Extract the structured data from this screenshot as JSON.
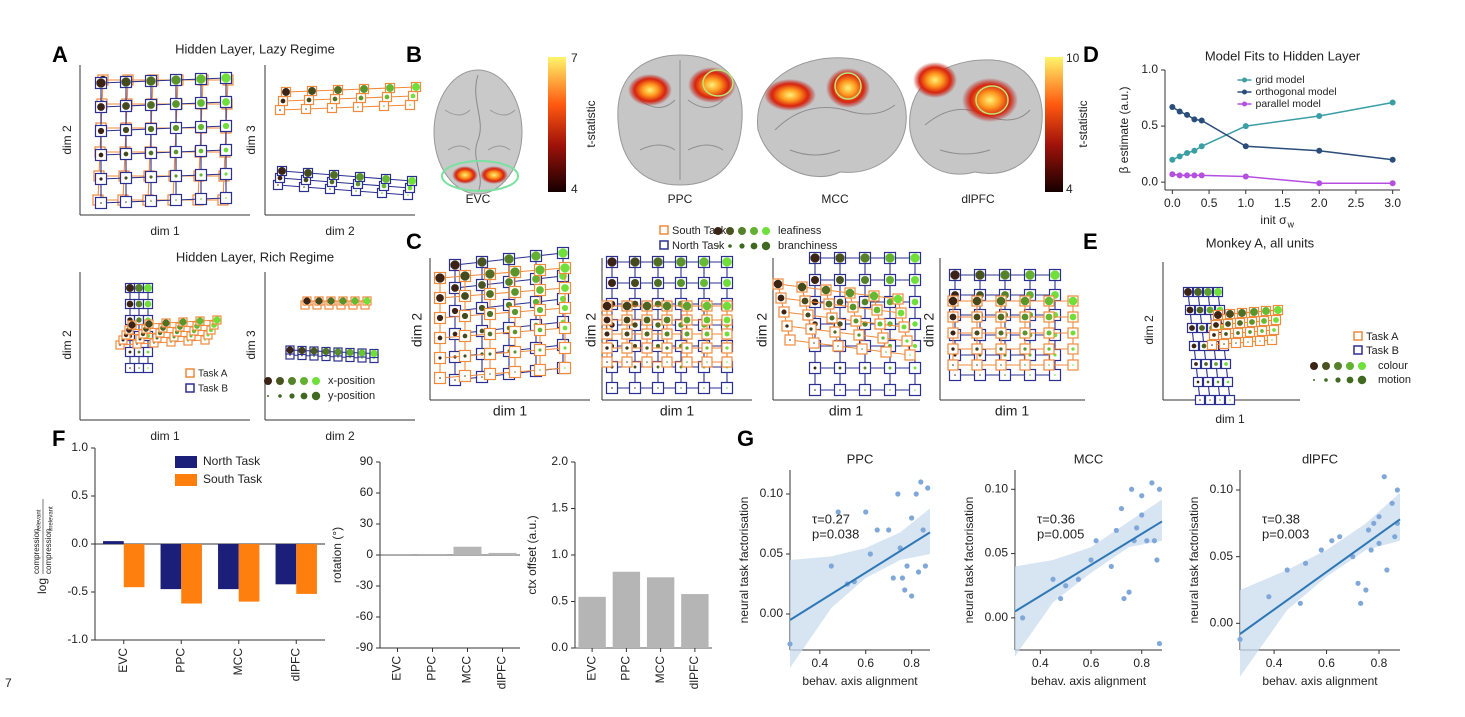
{
  "margin_label": "7",
  "panel_letters": {
    "a": "A",
    "b": "B",
    "c": "C",
    "d": "D",
    "e": "E",
    "f": "F",
    "g": "G"
  },
  "panel_a": {
    "title_lazy": "Hidden Layer, Lazy Regime",
    "title_rich": "Hidden Layer, Rich Regime",
    "dim1": "dim 1",
    "dim2": "dim 2",
    "dim3": "dim 3",
    "task_a": "Task A",
    "task_b": "Task B",
    "x_position": "x-position",
    "y_position": "y-position"
  },
  "panel_b": {
    "regions": [
      "EVC",
      "PPC",
      "MCC",
      "dlPFC"
    ],
    "colorbar_label": "t-statistic",
    "colorbar_left": {
      "max": "7",
      "min": "4"
    },
    "colorbar_right": {
      "max": "10",
      "min": "4"
    }
  },
  "panel_c": {
    "south_task": "South Task",
    "north_task": "North Task",
    "leafiness": "leafiness",
    "branchiness": "branchiness",
    "xlabel": "dim 1",
    "ylabel": "dim 2"
  },
  "panel_e": {
    "title": "Monkey A, all units",
    "task_a": "Task A",
    "task_b": "Task B",
    "colour": "colour",
    "motion": "motion",
    "xlabel": "dim 1",
    "ylabel": "dim 2"
  },
  "chart_data": [
    {
      "type": "line",
      "title": "Model Fits to Hidden Layer",
      "xlabel": "init σ",
      "xlabel_sub": "w",
      "ylabel": "β estimate (a.u.)",
      "legend": "upper center",
      "x": [
        0,
        0.1,
        0.2,
        0.3,
        0.4,
        1,
        2,
        3
      ],
      "series": [
        {
          "name": "grid model",
          "color": "#3a9ea5",
          "values": [
            0.2,
            0.23,
            0.26,
            0.28,
            0.32,
            0.5,
            0.59,
            0.71
          ]
        },
        {
          "name": "orthogonal model",
          "color": "#2a4d7a",
          "values": [
            0.67,
            0.63,
            0.6,
            0.56,
            0.55,
            0.32,
            0.28,
            0.2
          ]
        },
        {
          "name": "parallel model",
          "color": "#b44fe0",
          "values": [
            0.07,
            0.06,
            0.06,
            0.06,
            0.06,
            0.05,
            -0.01,
            -0.01
          ]
        }
      ],
      "xlim": [
        -0.1,
        3.1
      ],
      "xticks": [
        {
          "value": 0,
          "label": "0.0"
        },
        0.5,
        {
          "value": 1,
          "label": "1.0"
        },
        1.5,
        {
          "value": 2,
          "label": "2.0"
        },
        2.5,
        {
          "value": 3,
          "label": "3.0"
        }
      ],
      "ylim": [
        -0.07,
        1.0
      ],
      "yticks": [
        {
          "value": 0,
          "label": "0.0"
        },
        0.5,
        {
          "value": 1,
          "label": "1.0"
        }
      ]
    },
    {
      "type": "grouped_bar",
      "ylabel": {
        "log": "log",
        "numerator": "compression",
        "numerator_sub": "relevant",
        "denominator": "compression",
        "denominator_sub": "irrelevant"
      },
      "legend": "upper center",
      "categories": [
        "EVC",
        "PPC",
        "MCC",
        "dlPFC"
      ],
      "series": [
        {
          "name": "North Task",
          "color": "#1c1f7a",
          "values": [
            0.03,
            -0.47,
            -0.47,
            -0.42
          ]
        },
        {
          "name": "South Task",
          "color": "#ff7f0e",
          "values": [
            -0.45,
            -0.62,
            -0.6,
            -0.52
          ]
        }
      ],
      "ylim": [
        -1,
        1
      ],
      "yticks": [
        {
          "value": -1,
          "label": "-1.0"
        },
        -0.5,
        {
          "value": 0,
          "label": "0.0"
        },
        0.5,
        {
          "value": 1,
          "label": "1.0"
        }
      ]
    },
    {
      "type": "bar",
      "ylabel": "rotation (°)",
      "categories": [
        "EVC",
        "PPC",
        "MCC",
        "dlPFC"
      ],
      "values": [
        1,
        1,
        8,
        2
      ],
      "color": "#b5b5b5",
      "ylim": [
        -90,
        90
      ],
      "yticks": [
        -90,
        -60,
        -30,
        0,
        30,
        60,
        90
      ]
    },
    {
      "type": "bar",
      "ylabel": "ctx offset (a.u.)",
      "categories": [
        "EVC",
        "PPC",
        "MCC",
        "dlPFC"
      ],
      "values": [
        0.55,
        0.82,
        0.76,
        0.58
      ],
      "color": "#b5b5b5",
      "ylim": [
        0,
        2
      ],
      "yticks": [
        {
          "value": 0,
          "label": "0.0"
        },
        0.5,
        {
          "value": 1,
          "label": "1.0"
        },
        1.5,
        {
          "value": 2,
          "label": "2.0"
        }
      ]
    },
    {
      "type": "scatter",
      "title": "PPC",
      "annotation": [
        "τ=0.27",
        "p=0.038"
      ],
      "xlabel": "behav. axis alignment",
      "ylabel": "neural task factorisation",
      "color": "#7fa7d8",
      "x": [
        0.27,
        0.45,
        0.48,
        0.52,
        0.55,
        0.6,
        0.62,
        0.65,
        0.7,
        0.72,
        0.74,
        0.75,
        0.76,
        0.77,
        0.78,
        0.8,
        0.8,
        0.82,
        0.83,
        0.84,
        0.85,
        0.86,
        0.87
      ],
      "values": [
        -0.025,
        0.04,
        0.085,
        0.025,
        0.027,
        0.085,
        0.05,
        0.07,
        0.07,
        0.03,
        0.1,
        0.055,
        0.03,
        0.02,
        0.04,
        0.08,
        0.015,
        0.1,
        0.035,
        0.11,
        0.07,
        0.04,
        0.105
      ],
      "fit": {
        "x": [
          0.27,
          0.88
        ],
        "y": [
          -0.005,
          0.068
        ]
      },
      "band": {
        "x": [
          0.27,
          0.45,
          0.6,
          0.75,
          0.88
        ],
        "lower": [
          -0.045,
          0.005,
          0.03,
          0.045,
          0.05
        ],
        "upper": [
          0.045,
          0.048,
          0.055,
          0.068,
          0.088
        ]
      },
      "xlim": [
        0.27,
        0.88
      ],
      "xticks": [
        0.4,
        0.6,
        0.8
      ],
      "ylim": [
        -0.03,
        0.12
      ],
      "yticks": [
        {
          "value": 0,
          "label": "0.00"
        },
        0.05,
        {
          "value": 0.1,
          "label": "0.10"
        }
      ]
    },
    {
      "type": "scatter",
      "title": "MCC",
      "annotation": [
        "τ=0.36",
        "p=0.005"
      ],
      "xlabel": "behav. axis alignment",
      "ylabel": "neural task factorisation",
      "color": "#7fa7d8",
      "x": [
        0.33,
        0.45,
        0.48,
        0.5,
        0.55,
        0.6,
        0.62,
        0.68,
        0.7,
        0.72,
        0.73,
        0.75,
        0.76,
        0.77,
        0.78,
        0.8,
        0.8,
        0.82,
        0.84,
        0.85,
        0.86,
        0.87,
        0.87
      ],
      "values": [
        0.0,
        0.03,
        0.015,
        0.025,
        0.03,
        0.045,
        0.06,
        0.04,
        0.068,
        0.085,
        0.015,
        0.02,
        0.1,
        0.06,
        0.07,
        0.08,
        0.095,
        0.06,
        0.105,
        0.06,
        0.045,
        0.1,
        -0.02
      ],
      "fit": {
        "x": [
          0.3,
          0.88
        ],
        "y": [
          0.005,
          0.075
        ]
      },
      "band": {
        "x": [
          0.3,
          0.45,
          0.6,
          0.75,
          0.88
        ],
        "lower": [
          -0.03,
          0.012,
          0.035,
          0.055,
          0.06
        ],
        "upper": [
          0.04,
          0.045,
          0.055,
          0.075,
          0.092
        ]
      },
      "xlim": [
        0.3,
        0.88
      ],
      "xticks": [
        0.4,
        0.6,
        0.8
      ],
      "ylim": [
        -0.025,
        0.115
      ],
      "yticks": [
        {
          "value": 0,
          "label": "0.00"
        },
        0.05,
        {
          "value": 0.1,
          "label": "0.10"
        }
      ]
    },
    {
      "type": "scatter",
      "title": "dlPFC",
      "annotation": [
        "τ=0.38",
        "p=0.003"
      ],
      "xlabel": "behav. axis alignment",
      "ylabel": "neural task factorisation",
      "color": "#7fa7d8",
      "x": [
        0.27,
        0.38,
        0.45,
        0.5,
        0.52,
        0.58,
        0.62,
        0.65,
        0.7,
        0.72,
        0.73,
        0.75,
        0.76,
        0.77,
        0.78,
        0.8,
        0.8,
        0.82,
        0.83,
        0.85,
        0.86,
        0.87,
        0.87
      ],
      "values": [
        -0.012,
        0.02,
        0.04,
        0.015,
        0.045,
        0.055,
        0.062,
        0.065,
        0.05,
        0.03,
        0.015,
        0.025,
        0.07,
        0.055,
        0.075,
        0.08,
        0.06,
        0.11,
        0.04,
        0.09,
        0.065,
        0.075,
        0.1
      ],
      "fit": {
        "x": [
          0.27,
          0.88
        ],
        "y": [
          -0.008,
          0.078
        ]
      },
      "band": {
        "x": [
          0.27,
          0.45,
          0.6,
          0.75,
          0.88
        ],
        "lower": [
          -0.04,
          0.01,
          0.035,
          0.055,
          0.062
        ],
        "upper": [
          0.025,
          0.04,
          0.055,
          0.075,
          0.098
        ]
      },
      "xlim": [
        0.27,
        0.88
      ],
      "xticks": [
        0.4,
        0.6,
        0.8
      ],
      "ylim": [
        -0.02,
        0.115
      ],
      "yticks": [
        {
          "value": 0,
          "label": "0.00"
        },
        0.05,
        {
          "value": 0.1,
          "label": "0.10"
        }
      ]
    }
  ]
}
